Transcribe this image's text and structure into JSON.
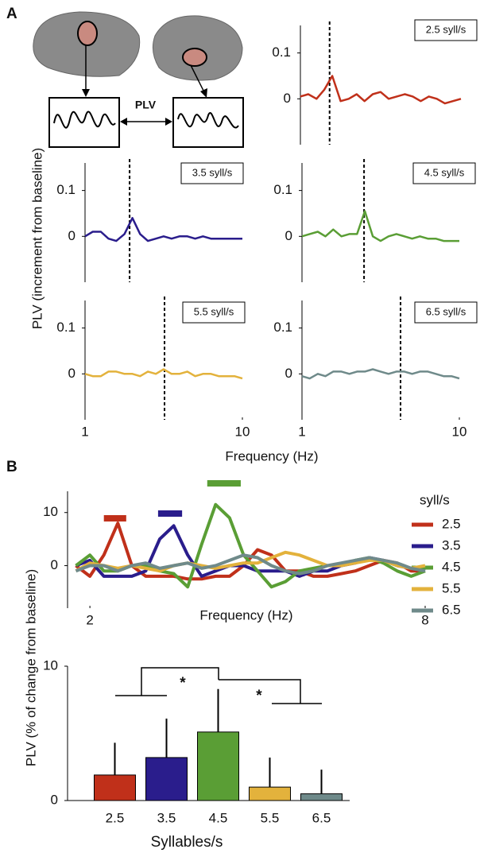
{
  "panels": [
    "A",
    "B"
  ],
  "diagram_label": "PLV",
  "panel_a": {
    "ylabel": "PLV (increment from baseline)",
    "xlabel": "Frequency (Hz)"
  },
  "panel_b_ylabel": "PLV (% of change from baseline)",
  "chart_data": [
    {
      "type": "line",
      "label": "2.5 syll/s",
      "xscale": "log",
      "xlim": [
        1,
        10
      ],
      "ylim": [
        -0.1,
        0.16
      ],
      "yticks": [
        0,
        0.1
      ],
      "stimulus_frequency": 1.52,
      "x": [
        1,
        1.12,
        1.26,
        1.41,
        1.58,
        1.78,
        2,
        2.24,
        2.51,
        2.82,
        3.16,
        3.55,
        3.98,
        4.47,
        5.01,
        5.62,
        6.31,
        7.08,
        7.94,
        8.91,
        10
      ],
      "series": [
        {
          "color": "#c0301a",
          "values": [
            0.005,
            0.01,
            0.0,
            0.02,
            0.05,
            -0.005,
            0.0,
            0.01,
            -0.005,
            0.01,
            0.015,
            0.0,
            0.005,
            0.01,
            0.005,
            -0.005,
            0.005,
            0.0,
            -0.01,
            -0.005,
            0.0
          ]
        }
      ]
    },
    {
      "type": "line",
      "label": "3.5 syll/s",
      "xscale": "log",
      "xlim": [
        1,
        10
      ],
      "ylim": [
        -0.1,
        0.16
      ],
      "yticks": [
        0,
        0.1
      ],
      "stimulus_frequency": 1.92,
      "x": [
        1,
        1.12,
        1.26,
        1.41,
        1.58,
        1.78,
        2,
        2.24,
        2.51,
        2.82,
        3.16,
        3.55,
        3.98,
        4.47,
        5.01,
        5.62,
        6.31,
        7.08,
        7.94,
        8.91,
        10
      ],
      "series": [
        {
          "color": "#2a1d8c",
          "values": [
            0.0,
            0.01,
            0.01,
            -0.005,
            -0.01,
            0.005,
            0.04,
            0.005,
            -0.01,
            -0.005,
            0.0,
            -0.005,
            0.0,
            0.0,
            -0.005,
            0.0,
            -0.005,
            -0.005,
            -0.005,
            -0.005,
            -0.005
          ]
        }
      ]
    },
    {
      "type": "line",
      "label": "4.5 syll/s",
      "xscale": "log",
      "xlim": [
        1,
        10
      ],
      "ylim": [
        -0.1,
        0.16
      ],
      "yticks": [
        0,
        0.1
      ],
      "stimulus_frequency": 2.48,
      "x": [
        1,
        1.12,
        1.26,
        1.41,
        1.58,
        1.78,
        2,
        2.24,
        2.51,
        2.82,
        3.16,
        3.55,
        3.98,
        4.47,
        5.01,
        5.62,
        6.31,
        7.08,
        7.94,
        8.91,
        10
      ],
      "series": [
        {
          "color": "#5a9e35",
          "values": [
            0.0,
            0.005,
            0.01,
            0.0,
            0.015,
            0.0,
            0.005,
            0.005,
            0.055,
            0.0,
            -0.01,
            0.0,
            0.005,
            0.0,
            -0.005,
            0.0,
            -0.005,
            -0.005,
            -0.01,
            -0.01,
            -0.01
          ]
        }
      ]
    },
    {
      "type": "line",
      "label": "5.5 syll/s",
      "xscale": "log",
      "xlim": [
        1,
        10
      ],
      "ylim": [
        -0.1,
        0.16
      ],
      "yticks": [
        0,
        0.1
      ],
      "xticks": [
        1,
        10
      ],
      "stimulus_frequency": 3.2,
      "x": [
        1,
        1.12,
        1.26,
        1.41,
        1.58,
        1.78,
        2,
        2.24,
        2.51,
        2.82,
        3.16,
        3.55,
        3.98,
        4.47,
        5.01,
        5.62,
        6.31,
        7.08,
        7.94,
        8.91,
        10
      ],
      "series": [
        {
          "color": "#e3b23c",
          "values": [
            0.0,
            -0.005,
            -0.005,
            0.005,
            0.005,
            0.0,
            0.0,
            -0.005,
            0.005,
            0.0,
            0.01,
            0.0,
            0.0,
            0.005,
            -0.005,
            0.0,
            0.0,
            -0.005,
            -0.005,
            -0.005,
            -0.01
          ]
        }
      ]
    },
    {
      "type": "line",
      "label": "6.5 syll/s",
      "xscale": "log",
      "xlim": [
        1,
        10
      ],
      "ylim": [
        -0.1,
        0.16
      ],
      "yticks": [
        0,
        0.1
      ],
      "xticks": [
        1,
        10
      ],
      "stimulus_frequency": 4.23,
      "x": [
        1,
        1.12,
        1.26,
        1.41,
        1.58,
        1.78,
        2,
        2.24,
        2.51,
        2.82,
        3.16,
        3.55,
        3.98,
        4.47,
        5.01,
        5.62,
        6.31,
        7.08,
        7.94,
        8.91,
        10
      ],
      "series": [
        {
          "color": "#6f8a8a",
          "values": [
            -0.005,
            -0.01,
            0.0,
            -0.005,
            0.005,
            0.005,
            0.0,
            0.005,
            0.005,
            0.01,
            0.005,
            0.0,
            0.005,
            0.005,
            0.0,
            0.005,
            0.005,
            0.0,
            -0.005,
            -0.005,
            -0.01
          ]
        }
      ]
    },
    {
      "type": "line",
      "xlabel": "Frequency (Hz)",
      "legend_title": "syll/s",
      "xlim": [
        1.6,
        8
      ],
      "xticks": [
        2,
        8
      ],
      "ylim": [
        -8,
        14
      ],
      "yticks": [
        0,
        10
      ],
      "x": [
        1.75,
        2,
        2.25,
        2.5,
        2.75,
        3,
        3.25,
        3.5,
        3.75,
        4,
        4.25,
        4.5,
        4.75,
        5,
        5.25,
        5.5,
        5.75,
        6,
        6.25,
        6.5,
        6.75,
        7,
        7.25,
        7.5,
        7.75,
        8
      ],
      "series": [
        {
          "name": "2.5",
          "color": "#c0301a",
          "values": [
            0,
            -2,
            2,
            8,
            0,
            -2,
            -2,
            -2,
            -2.5,
            -2.5,
            -2,
            -2,
            0,
            3,
            2,
            -1,
            -1,
            -2,
            -2,
            -1.5,
            -1,
            0,
            1,
            0.5,
            -1,
            -1
          ]
        },
        {
          "name": "3.5",
          "color": "#2a1d8c",
          "values": [
            0,
            1,
            -2,
            -2,
            -2,
            -1,
            5,
            7.5,
            2,
            -2,
            -1,
            0,
            0,
            -1,
            -1,
            -1,
            -2,
            -1,
            -1,
            0,
            0.5,
            1.5,
            1,
            0,
            -0.5,
            -1
          ]
        },
        {
          "name": "4.5",
          "color": "#5a9e35",
          "values": [
            0,
            2,
            -1,
            -1,
            0,
            0,
            -1,
            -1.5,
            -4,
            4,
            11.5,
            9,
            2,
            -1,
            -4,
            -3,
            -1,
            -0.5,
            0,
            0,
            1,
            1.5,
            0.5,
            -1,
            -2,
            -1
          ]
        },
        {
          "name": "5.5",
          "color": "#e3b23c",
          "values": [
            -1,
            0.5,
            0,
            -0.5,
            0,
            -0.5,
            -1,
            0,
            0.5,
            0,
            -0.5,
            0,
            0.5,
            0.5,
            1.5,
            2.5,
            2,
            1,
            0,
            0,
            0.5,
            1,
            1,
            0,
            -0.5,
            0
          ]
        },
        {
          "name": "6.5",
          "color": "#6f8a8a",
          "values": [
            -1,
            0,
            0,
            -1,
            0,
            0.5,
            -0.5,
            0,
            0.5,
            -0.5,
            0,
            1,
            2,
            1.5,
            0,
            -1,
            -1.5,
            -1,
            0,
            0.5,
            1,
            1.5,
            1,
            0.5,
            -0.5,
            -1
          ]
        }
      ],
      "sig_bars": [
        {
          "color": "#c0301a",
          "x": [
            2.25,
            2.65
          ]
        },
        {
          "color": "#2a1d8c",
          "x": [
            3.22,
            3.65
          ]
        },
        {
          "color": "#5a9e35",
          "x": [
            4.1,
            4.7
          ]
        }
      ]
    },
    {
      "type": "bar",
      "xlabel": "Syllables/s",
      "categories": [
        "2.5",
        "3.5",
        "4.5",
        "5.5",
        "6.5"
      ],
      "values": [
        1.9,
        3.2,
        5.1,
        1.0,
        0.5
      ],
      "errors": [
        2.4,
        2.9,
        3.2,
        2.2,
        1.8
      ],
      "colors": [
        "#c0301a",
        "#2a1d8c",
        "#5a9e35",
        "#e3b23c",
        "#6f8a8a"
      ],
      "ylim": [
        0,
        10
      ],
      "yticks": [
        0,
        10
      ],
      "annotations": [
        "*",
        "*"
      ]
    }
  ]
}
